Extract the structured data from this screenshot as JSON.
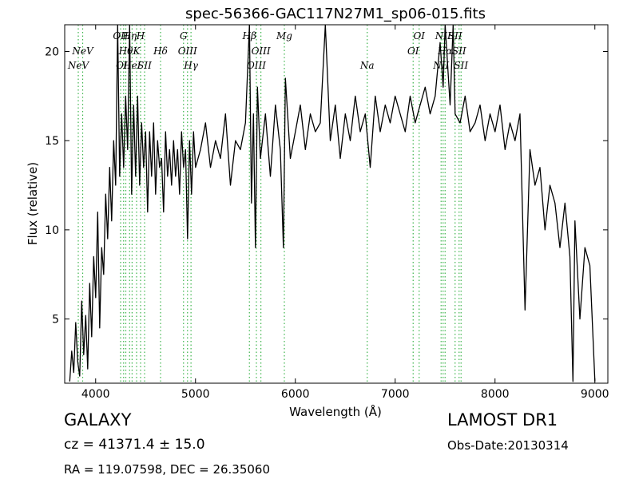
{
  "chart_data": {
    "type": "line",
    "title": "spec-56366-GAC117N27M1_sp06-015.fits",
    "xlabel": "Wavelength (Å)",
    "ylabel": "Flux (relative)",
    "xlim": [
      3690,
      9130
    ],
    "ylim": [
      1.4,
      21.5
    ],
    "x_ticks": [
      4000,
      5000,
      6000,
      7000,
      8000,
      9000
    ],
    "x_tick_labels": [
      "4000",
      "5000",
      "6000",
      "7000",
      "8000",
      "9000"
    ],
    "y_ticks": [
      5,
      10,
      15,
      20
    ],
    "y_tick_labels": [
      "5",
      "10",
      "15",
      "20"
    ],
    "grid": false,
    "line_color": "#000000",
    "marker_line_color": "#3cb44b",
    "series": [
      {
        "x": [
          3740,
          3760,
          3780,
          3800,
          3820,
          3840,
          3860,
          3880,
          3900,
          3920,
          3940,
          3960,
          3980,
          4000,
          4020,
          4040,
          4060,
          4080,
          4100,
          4120,
          4140,
          4160,
          4180,
          4200,
          4220,
          4240,
          4260,
          4280,
          4300,
          4320,
          4340,
          4360,
          4380,
          4400,
          4420,
          4440,
          4460,
          4480,
          4500,
          4520,
          4540,
          4560,
          4580,
          4600,
          4620,
          4640,
          4660,
          4680,
          4700,
          4720,
          4740,
          4760,
          4780,
          4800,
          4820,
          4840,
          4860,
          4880,
          4900,
          4920,
          4940,
          4960,
          4980,
          5000,
          5050,
          5100,
          5150,
          5200,
          5250,
          5300,
          5350,
          5400,
          5450,
          5500,
          5540,
          5560,
          5580,
          5600,
          5620,
          5650,
          5700,
          5750,
          5800,
          5850,
          5880,
          5900,
          5950,
          6000,
          6050,
          6100,
          6150,
          6200,
          6250,
          6300,
          6350,
          6400,
          6450,
          6500,
          6550,
          6600,
          6650,
          6700,
          6750,
          6800,
          6850,
          6900,
          6950,
          7000,
          7050,
          7100,
          7150,
          7200,
          7250,
          7300,
          7350,
          7400,
          7450,
          7480,
          7500,
          7550,
          7580,
          7600,
          7650,
          7700,
          7750,
          7800,
          7850,
          7900,
          7950,
          8000,
          8050,
          8100,
          8150,
          8200,
          8250,
          8300,
          8350,
          8400,
          8450,
          8500,
          8550,
          8600,
          8650,
          8700,
          8750,
          8780,
          8800,
          8850,
          8900,
          8950,
          9000
        ],
        "y": [
          1.5,
          3.2,
          2.0,
          4.8,
          2.6,
          1.8,
          6.0,
          3.0,
          5.2,
          2.2,
          7.0,
          4.0,
          8.5,
          6.2,
          11.0,
          4.5,
          9.0,
          7.5,
          12.0,
          9.5,
          13.5,
          10.5,
          15.0,
          12.5,
          21.5,
          13.0,
          16.5,
          13.5,
          17.5,
          14.5,
          21.5,
          12.0,
          17.0,
          13.0,
          17.5,
          12.5,
          16.0,
          13.5,
          15.5,
          11.0,
          15.5,
          13.0,
          16.0,
          12.0,
          15.0,
          13.5,
          14.0,
          11.0,
          15.5,
          13.0,
          14.5,
          12.5,
          15.0,
          13.0,
          14.5,
          12.0,
          15.5,
          13.5,
          14.5,
          9.5,
          15.0,
          12.0,
          15.5,
          13.5,
          14.5,
          16.0,
          13.5,
          15.0,
          14.0,
          16.5,
          12.5,
          15.0,
          14.5,
          16.0,
          21.5,
          11.5,
          16.5,
          9.0,
          18.0,
          14.0,
          16.5,
          13.0,
          17.0,
          14.5,
          9.0,
          18.5,
          14.0,
          15.5,
          17.0,
          14.5,
          16.5,
          15.5,
          16.0,
          21.5,
          15.0,
          17.0,
          14.0,
          16.5,
          15.0,
          17.5,
          15.5,
          16.5,
          13.5,
          17.5,
          15.5,
          17.0,
          16.0,
          17.5,
          16.5,
          15.5,
          17.5,
          16.0,
          17.0,
          18.0,
          16.5,
          17.5,
          20.5,
          18.0,
          21.5,
          17.0,
          21.5,
          16.5,
          16.0,
          17.5,
          15.5,
          16.0,
          17.0,
          15.0,
          16.5,
          15.5,
          17.0,
          14.5,
          16.0,
          15.0,
          16.5,
          5.5,
          14.5,
          12.5,
          13.5,
          10.0,
          12.5,
          11.5,
          9.0,
          11.5,
          8.5,
          1.5,
          10.5,
          5.0,
          9.0,
          8.0,
          1.5
        ]
      }
    ],
    "line_markers": [
      {
        "wave": 3826,
        "label": "NeV",
        "row": 2
      },
      {
        "wave": 3870,
        "label": "NeV",
        "row": 1
      },
      {
        "wave": 4250,
        "label": "OII",
        "row": 0
      },
      {
        "wave": 4280,
        "label": "OII",
        "row": 2
      },
      {
        "wave": 4302,
        "label": "Hθ",
        "row": 1
      },
      {
        "wave": 4340,
        "label": "Hη",
        "row": 0
      },
      {
        "wave": 4365,
        "label": "HeI",
        "row": 2
      },
      {
        "wave": 4410,
        "label": "K",
        "row": 1
      },
      {
        "wave": 4450,
        "label": "H",
        "row": 0
      },
      {
        "wave": 4490,
        "label": "SII",
        "row": 2
      },
      {
        "wave": 4650,
        "label": "Hδ",
        "row": 1
      },
      {
        "wave": 4880,
        "label": "G",
        "row": 0
      },
      {
        "wave": 4920,
        "label": "OIII",
        "row": 1
      },
      {
        "wave": 4955,
        "label": "Hγ",
        "row": 2
      },
      {
        "wave": 5540,
        "label": "Hβ",
        "row": 0
      },
      {
        "wave": 5610,
        "label": "OIII",
        "row": 2
      },
      {
        "wave": 5655,
        "label": "OIII",
        "row": 1
      },
      {
        "wave": 5890,
        "label": "Mg",
        "row": 0
      },
      {
        "wave": 6720,
        "label": "Na",
        "row": 2
      },
      {
        "wave": 7180,
        "label": "OI",
        "row": 1
      },
      {
        "wave": 7240,
        "label": "OI",
        "row": 0
      },
      {
        "wave": 7460,
        "label": "NII",
        "row": 2
      },
      {
        "wave": 7480,
        "label": "NII",
        "row": 0
      },
      {
        "wave": 7500,
        "label": "Hα",
        "row": 1
      },
      {
        "wave": 7600,
        "label": "SII",
        "row": 0
      },
      {
        "wave": 7640,
        "label": "SII",
        "row": 1
      },
      {
        "wave": 7660,
        "label": "SII",
        "row": 2
      }
    ]
  },
  "info": {
    "object_class": "GALAXY",
    "survey": "LAMOST DR1",
    "redshift": "cz = 41371.4 ± 15.0",
    "obs_date": "Obs-Date:20130314",
    "coords": "RA = 119.07598, DEC = 26.35060"
  }
}
